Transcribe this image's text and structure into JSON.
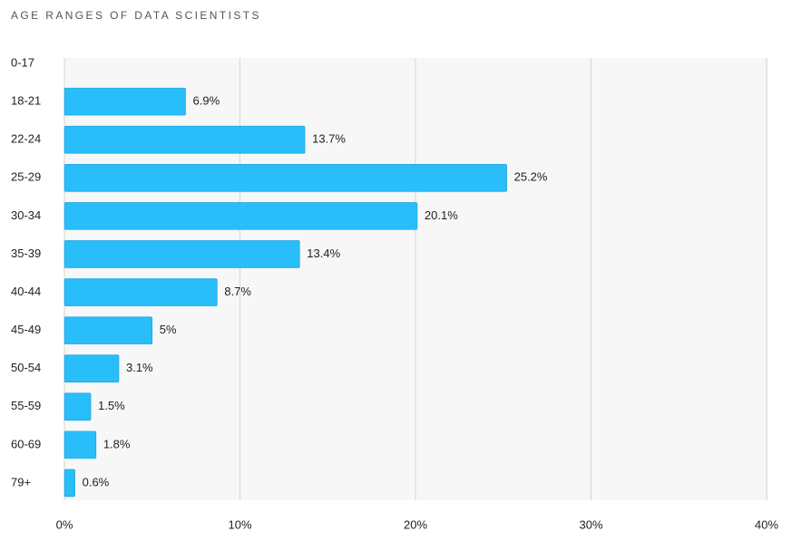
{
  "chart_data": {
    "type": "bar",
    "orientation": "horizontal",
    "title": "AGE RANGES OF DATA SCIENTISTS",
    "categories": [
      "0-17",
      "18-21",
      "22-24",
      "25-29",
      "30-34",
      "35-39",
      "40-44",
      "45-49",
      "50-54",
      "55-59",
      "60-69",
      "79+"
    ],
    "values": [
      null,
      6.9,
      13.7,
      25.2,
      20.1,
      13.4,
      8.7,
      5,
      3.1,
      1.5,
      1.8,
      0.6
    ],
    "value_labels": [
      null,
      "6.9%",
      "13.7%",
      "25.2%",
      "20.1%",
      "13.4%",
      "8.7%",
      "5%",
      "3.1%",
      "1.5%",
      "1.8%",
      "0.6%"
    ],
    "color": "#29bdfa",
    "xlim": [
      0,
      40
    ],
    "xticks": [
      {
        "value": 0,
        "label": "0%"
      },
      {
        "value": 10,
        "label": "10%"
      },
      {
        "value": 20,
        "label": "20%"
      },
      {
        "value": 30,
        "label": "30%"
      },
      {
        "value": 40,
        "label": "40%"
      }
    ],
    "grid": true
  }
}
